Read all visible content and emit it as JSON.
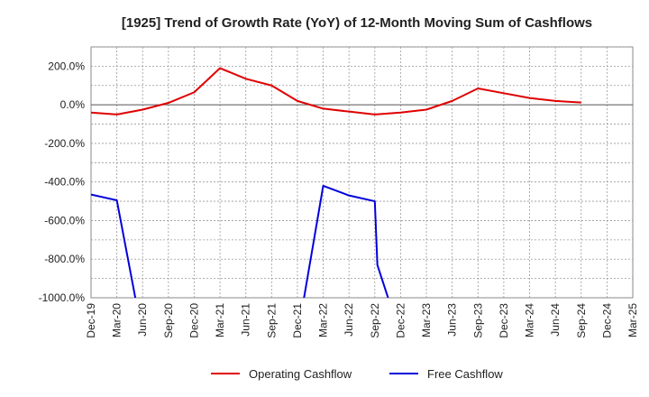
{
  "chart_data": {
    "type": "line",
    "title": "[1925]  Trend of Growth Rate (YoY) of 12-Month Moving Sum of Cashflows",
    "xlabel": "",
    "ylabel": "",
    "x_categories": [
      "Dec-19",
      "Mar-20",
      "Jun-20",
      "Sep-20",
      "Dec-20",
      "Mar-21",
      "Jun-21",
      "Sep-21",
      "Dec-21",
      "Mar-22",
      "Jun-22",
      "Sep-22",
      "Dec-22",
      "Mar-23",
      "Jun-23",
      "Sep-23",
      "Dec-23",
      "Mar-24",
      "Jun-24",
      "Sep-24",
      "Dec-24",
      "Mar-25"
    ],
    "y_ticks": [
      200,
      0,
      -200,
      -400,
      -600,
      -800,
      -1000
    ],
    "y_tick_labels": [
      "200.0%",
      "0.0%",
      "-200.0%",
      "-400.0%",
      "-600.0%",
      "-800.0%",
      "-1000.0%"
    ],
    "ylim": [
      -1000,
      300
    ],
    "grid": true,
    "legend_position": "bottom",
    "series": [
      {
        "name": "Operating Cashflow",
        "color": "#e00000",
        "values": [
          -40,
          -50,
          -25,
          10,
          65,
          190,
          135,
          100,
          20,
          -20,
          -35,
          -50,
          -40,
          -25,
          20,
          85,
          60,
          35,
          20,
          12,
          null,
          null
        ]
      },
      {
        "name": "Free Cashflow",
        "color": "#0000dd",
        "values": [
          -465,
          -495,
          -1200,
          null,
          null,
          null,
          null,
          null,
          -1200,
          -420,
          -470,
          -500,
          -1200,
          null,
          null,
          null,
          null,
          null,
          null,
          null,
          null,
          null
        ],
        "extra_points": [
          {
            "x": 11.1,
            "y": -830
          }
        ]
      }
    ]
  }
}
